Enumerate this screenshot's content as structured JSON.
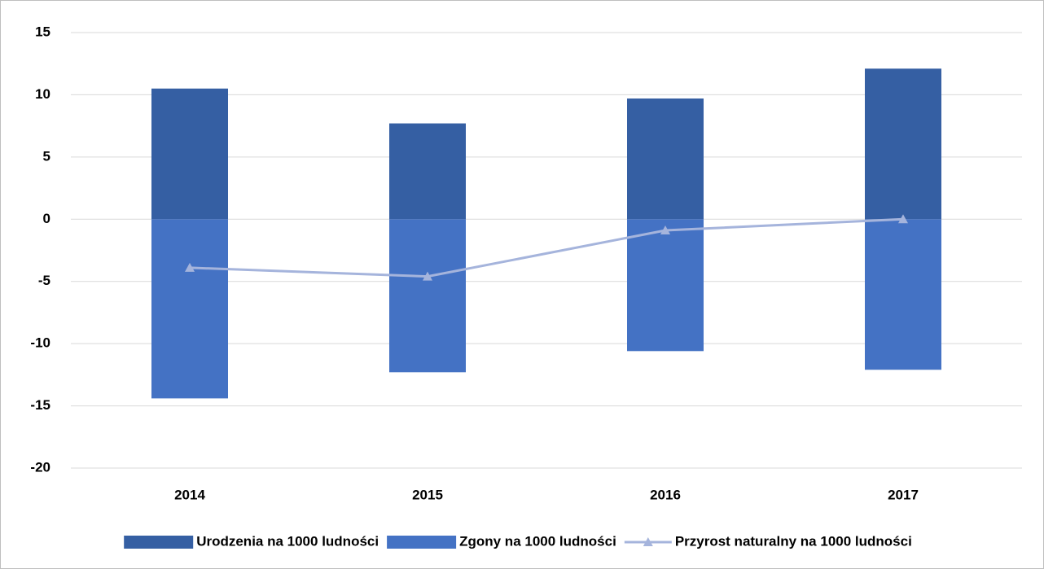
{
  "chart_data": {
    "type": "bar",
    "categories": [
      "2014",
      "2015",
      "2016",
      "2017"
    ],
    "series": [
      {
        "name": "Urodzenia na 1000 ludności",
        "type": "bar",
        "color": "#355fa3",
        "values": [
          10.5,
          7.7,
          9.7,
          12.1
        ]
      },
      {
        "name": "Zgony na 1000 ludności",
        "type": "bar",
        "color": "#4472c4",
        "values": [
          -14.4,
          -12.3,
          -10.6,
          -12.1
        ]
      },
      {
        "name": "Przyrost naturalny na 1000 ludności",
        "type": "line",
        "color": "#a5b4dc",
        "values": [
          -3.9,
          -4.6,
          -0.9,
          0
        ]
      }
    ],
    "ylim": [
      -20,
      15
    ],
    "yticks": [
      -20,
      -15,
      -10,
      -5,
      0,
      5,
      10,
      15
    ],
    "grid": true,
    "legend": "bottom"
  }
}
